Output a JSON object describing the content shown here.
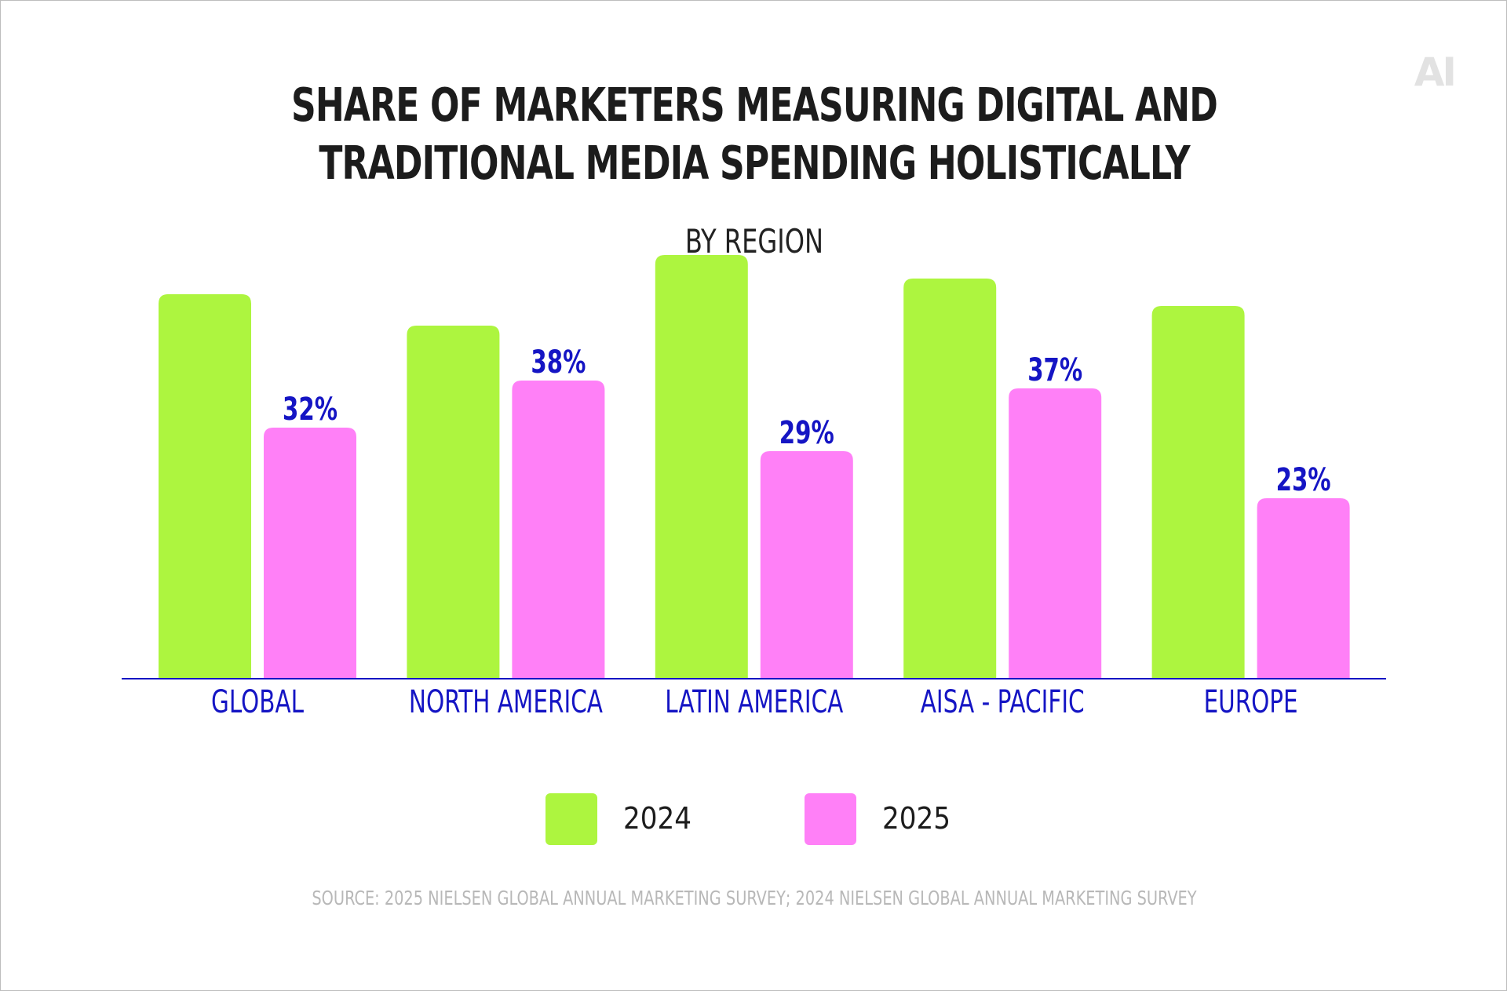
{
  "brand": {
    "logo_text": "AI"
  },
  "chart_data": {
    "type": "bar",
    "title": "SHARE OF MARKETERS MEASURING DIGITAL AND TRADITIONAL MEDIA SPENDING HOLISTICALLY",
    "title_lines": [
      "SHARE OF MARKETERS MEASURING DIGITAL AND",
      "TRADITIONAL MEDIA SPENDING HOLISTICALLY"
    ],
    "subtitle": "BY REGION",
    "categories": [
      "GLOBAL",
      "NORTH AMERICA",
      "LATIN AMERICA",
      "AISA - PACIFIC",
      "EUROPE"
    ],
    "series": [
      {
        "name": "2024",
        "color": "#adf53f",
        "values": [
          49,
          45,
          54,
          51,
          47.5
        ],
        "labeled": false
      },
      {
        "name": "2025",
        "color": "#ff80f7",
        "values": [
          32,
          38,
          29,
          37,
          23
        ],
        "labeled": true
      }
    ],
    "value_suffix": "%",
    "ylim": [
      0,
      60
    ],
    "grid": false,
    "legend_position": "bottom",
    "label_color": "#1515c4",
    "axis_color": "#1515c4",
    "source": "SOURCE: 2025 NIELSEN GLOBAL ANNUAL MARKETING SURVEY; 2024 NIELSEN GLOBAL ANNUAL MARKETING SURVEY"
  }
}
